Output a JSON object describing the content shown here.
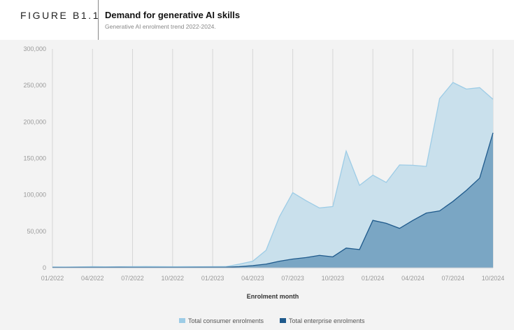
{
  "header": {
    "figure_label": "FIGURE B1.1",
    "title": "Demand for generative AI skills",
    "subtitle": "Generative AI enrolment trend 2022-2024."
  },
  "chart_data": {
    "type": "area",
    "title": "Demand for generative AI skills",
    "xlabel": "Enrolment month",
    "ylabel": "",
    "ylim": [
      0,
      300000
    ],
    "yticks": [
      "0",
      "50,000",
      "100,000",
      "150,000",
      "200,000",
      "250,000",
      "300,000"
    ],
    "ytick_values": [
      0,
      50000,
      100000,
      150000,
      200000,
      250000,
      300000
    ],
    "xticks": [
      "01/2022",
      "04/2022",
      "07/2022",
      "10/2022",
      "01/2023",
      "04/2023",
      "07/2023",
      "10/2023",
      "01/2024",
      "04/2024",
      "07/2024",
      "10/2024"
    ],
    "x_months": 34,
    "series": [
      {
        "name": "Total consumer enrolments",
        "color": "#9dcce6",
        "fill": "#c9e0ec",
        "values": [
          1200,
          1000,
          1200,
          1500,
          1300,
          1400,
          1500,
          1600,
          1500,
          1400,
          1500,
          1400,
          1500,
          1600,
          5000,
          9000,
          24000,
          70000,
          103000,
          92000,
          82000,
          84000,
          160000,
          113000,
          127000,
          117000,
          141000,
          140500,
          139000,
          232000,
          254000,
          245000,
          247000,
          231000
        ]
      },
      {
        "name": "Total enterprise enrolments",
        "color": "#1f5a8c",
        "fill": "#76a2c2",
        "values": [
          500,
          500,
          600,
          600,
          600,
          700,
          600,
          600,
          600,
          600,
          600,
          700,
          700,
          800,
          1500,
          3000,
          5000,
          9000,
          12000,
          14000,
          17000,
          15000,
          27000,
          25000,
          65000,
          61000,
          54000,
          65000,
          75000,
          78000,
          91000,
          106000,
          123000,
          185000
        ]
      }
    ],
    "grid": "vertical",
    "legend": "bottom-center"
  }
}
